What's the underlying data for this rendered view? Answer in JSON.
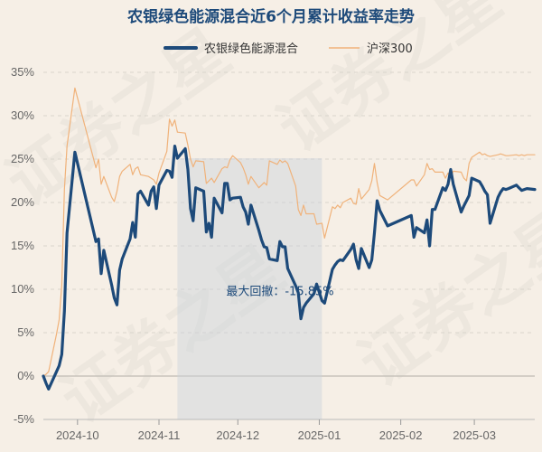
{
  "chart_data": {
    "type": "line",
    "title": "农银绿色能源混合近6个月累计收益率走势",
    "watermark": "证券之星",
    "legend_position": "top-center",
    "grid": true,
    "y_unit": "%",
    "ylim": [
      -5,
      35
    ],
    "y_ticks": [
      -5,
      0,
      5,
      10,
      15,
      20,
      25,
      30,
      35
    ],
    "y_tick_labels": [
      "-5%",
      "0%",
      "5%",
      "10%",
      "15%",
      "20%",
      "25%",
      "30%",
      "35%"
    ],
    "x_range": [
      "2024-09-18",
      "2025-03-24"
    ],
    "x_ticks": [
      "2024-10-01",
      "2024-11-01",
      "2024-12-01",
      "2025-01-01",
      "2025-02-01",
      "2025-03-01"
    ],
    "x_tick_labels": [
      "2024-10",
      "2024-11",
      "2024-12",
      "2025-01",
      "2025-02",
      "2025-03"
    ],
    "series": [
      {
        "name": "农银绿色能源混合",
        "color": "#1d4a7a",
        "x": [
          "2024-09-18",
          "2024-09-19",
          "2024-09-20",
          "2024-09-23",
          "2024-09-24",
          "2024-09-25",
          "2024-09-26",
          "2024-09-27",
          "2024-09-30",
          "2024-10-08",
          "2024-10-09",
          "2024-10-10",
          "2024-10-11",
          "2024-10-14",
          "2024-10-15",
          "2024-10-16",
          "2024-10-17",
          "2024-10-18",
          "2024-10-21",
          "2024-10-22",
          "2024-10-23",
          "2024-10-24",
          "2024-10-25",
          "2024-10-28",
          "2024-10-29",
          "2024-10-30",
          "2024-10-31",
          "2024-11-01",
          "2024-11-04",
          "2024-11-05",
          "2024-11-06",
          "2024-11-07",
          "2024-11-08",
          "2024-11-11",
          "2024-11-12",
          "2024-11-13",
          "2024-11-14",
          "2024-11-15",
          "2024-11-18",
          "2024-11-19",
          "2024-11-20",
          "2024-11-21",
          "2024-11-22",
          "2024-11-25",
          "2024-11-26",
          "2024-11-27",
          "2024-11-28",
          "2024-11-29",
          "2024-12-02",
          "2024-12-03",
          "2024-12-04",
          "2024-12-05",
          "2024-12-06",
          "2024-12-09",
          "2024-12-10",
          "2024-12-11",
          "2024-12-12",
          "2024-12-13",
          "2024-12-16",
          "2024-12-17",
          "2024-12-18",
          "2024-12-19",
          "2024-12-20",
          "2024-12-23",
          "2024-12-24",
          "2024-12-25",
          "2024-12-26",
          "2024-12-27",
          "2024-12-30",
          "2024-12-31",
          "2025-01-02",
          "2025-01-03",
          "2025-01-06",
          "2025-01-07",
          "2025-01-08",
          "2025-01-09",
          "2025-01-10",
          "2025-01-13",
          "2025-01-14",
          "2025-01-15",
          "2025-01-16",
          "2025-01-17",
          "2025-01-20",
          "2025-01-21",
          "2025-01-22",
          "2025-01-23",
          "2025-01-24",
          "2025-01-27",
          "2025-02-05",
          "2025-02-06",
          "2025-02-07",
          "2025-02-10",
          "2025-02-11",
          "2025-02-12",
          "2025-02-13",
          "2025-02-14",
          "2025-02-17",
          "2025-02-18",
          "2025-02-19",
          "2025-02-20",
          "2025-02-21",
          "2025-02-24",
          "2025-02-25",
          "2025-02-26",
          "2025-02-27",
          "2025-02-28",
          "2025-03-03",
          "2025-03-04",
          "2025-03-05",
          "2025-03-06",
          "2025-03-07",
          "2025-03-10",
          "2025-03-11",
          "2025-03-12",
          "2025-03-13",
          "2025-03-14",
          "2025-03-17",
          "2025-03-18",
          "2025-03-19",
          "2025-03-20",
          "2025-03-21",
          "2025-03-24"
        ],
        "values": [
          0.0,
          -0.8,
          -1.5,
          0.5,
          1.2,
          2.5,
          7.5,
          16.5,
          25.8,
          15.5,
          15.8,
          11.8,
          14.5,
          10.5,
          9.0,
          8.2,
          12.2,
          13.5,
          15.8,
          17.7,
          16.0,
          21.0,
          21.3,
          19.7,
          21.3,
          21.8,
          19.3,
          22.0,
          23.7,
          23.6,
          22.9,
          26.5,
          25.1,
          26.2,
          23.8,
          19.3,
          17.9,
          21.7,
          21.3,
          16.6,
          17.6,
          16.0,
          20.5,
          18.8,
          22.2,
          22.2,
          20.3,
          20.5,
          20.6,
          19.5,
          18.9,
          17.5,
          19.7,
          16.8,
          15.7,
          14.9,
          14.8,
          13.5,
          13.3,
          15.5,
          14.9,
          14.9,
          12.4,
          10.4,
          9.6,
          6.6,
          7.9,
          8.4,
          9.5,
          10.6,
          8.7,
          8.4,
          12.3,
          12.8,
          13.2,
          13.4,
          13.3,
          14.6,
          15.2,
          13.4,
          12.4,
          14.7,
          12.5,
          13.4,
          16.5,
          20.2,
          19.1,
          17.3,
          18.5,
          16.0,
          17.1,
          16.5,
          18.0,
          15.0,
          19.2,
          19.2,
          21.7,
          21.4,
          22.1,
          23.8,
          22.1,
          18.9,
          19.6,
          20.2,
          20.8,
          22.8,
          22.4,
          21.9,
          21.3,
          20.9,
          17.6,
          20.6,
          21.2,
          21.6,
          21.5,
          21.6,
          22.0,
          21.7,
          21.4,
          21.5,
          21.6,
          21.5
        ]
      },
      {
        "name": "沪深300",
        "color": "#f0b27a",
        "x": [
          "2024-09-18",
          "2024-09-19",
          "2024-09-20",
          "2024-09-23",
          "2024-09-24",
          "2024-09-25",
          "2024-09-26",
          "2024-09-27",
          "2024-09-30",
          "2024-10-08",
          "2024-10-09",
          "2024-10-10",
          "2024-10-11",
          "2024-10-14",
          "2024-10-15",
          "2024-10-16",
          "2024-10-17",
          "2024-10-18",
          "2024-10-21",
          "2024-10-22",
          "2024-10-23",
          "2024-10-24",
          "2024-10-25",
          "2024-10-28",
          "2024-10-29",
          "2024-10-30",
          "2024-10-31",
          "2024-11-01",
          "2024-11-04",
          "2024-11-05",
          "2024-11-06",
          "2024-11-07",
          "2024-11-08",
          "2024-11-11",
          "2024-11-12",
          "2024-11-13",
          "2024-11-14",
          "2024-11-15",
          "2024-11-18",
          "2024-11-19",
          "2024-11-20",
          "2024-11-21",
          "2024-11-22",
          "2024-11-25",
          "2024-11-26",
          "2024-11-27",
          "2024-11-28",
          "2024-11-29",
          "2024-12-02",
          "2024-12-03",
          "2024-12-04",
          "2024-12-05",
          "2024-12-06",
          "2024-12-09",
          "2024-12-10",
          "2024-12-11",
          "2024-12-12",
          "2024-12-13",
          "2024-12-16",
          "2024-12-17",
          "2024-12-18",
          "2024-12-19",
          "2024-12-20",
          "2024-12-23",
          "2024-12-24",
          "2024-12-25",
          "2024-12-26",
          "2024-12-27",
          "2024-12-30",
          "2024-12-31",
          "2025-01-02",
          "2025-01-03",
          "2025-01-06",
          "2025-01-07",
          "2025-01-08",
          "2025-01-09",
          "2025-01-10",
          "2025-01-13",
          "2025-01-14",
          "2025-01-15",
          "2025-01-16",
          "2025-01-17",
          "2025-01-20",
          "2025-01-21",
          "2025-01-22",
          "2025-01-23",
          "2025-01-24",
          "2025-01-27",
          "2025-02-05",
          "2025-02-06",
          "2025-02-07",
          "2025-02-10",
          "2025-02-11",
          "2025-02-12",
          "2025-02-13",
          "2025-02-14",
          "2025-02-17",
          "2025-02-18",
          "2025-02-19",
          "2025-02-20",
          "2025-02-21",
          "2025-02-24",
          "2025-02-25",
          "2025-02-26",
          "2025-02-27",
          "2025-02-28",
          "2025-03-03",
          "2025-03-04",
          "2025-03-05",
          "2025-03-06",
          "2025-03-07",
          "2025-03-10",
          "2025-03-11",
          "2025-03-12",
          "2025-03-13",
          "2025-03-14",
          "2025-03-17",
          "2025-03-18",
          "2025-03-19",
          "2025-03-20",
          "2025-03-21",
          "2025-03-24"
        ],
        "values": [
          0.0,
          0.2,
          0.5,
          4.8,
          6.5,
          10.5,
          21.5,
          26.5,
          33.2,
          24.0,
          25.0,
          22.1,
          23.0,
          20.6,
          20.1,
          21.3,
          23.0,
          23.6,
          24.4,
          23.2,
          23.9,
          24.1,
          23.2,
          23.0,
          22.8,
          22.6,
          22.1,
          23.4,
          25.9,
          29.6,
          28.8,
          29.5,
          28.1,
          28.0,
          26.6,
          25.0,
          24.1,
          24.8,
          24.7,
          22.2,
          22.5,
          22.8,
          22.3,
          23.9,
          24.1,
          24.0,
          24.9,
          25.4,
          24.6,
          24.0,
          23.2,
          22.1,
          23.0,
          21.7,
          22.0,
          22.3,
          22.0,
          24.8,
          24.4,
          24.9,
          24.6,
          24.8,
          24.5,
          21.9,
          19.2,
          18.5,
          19.7,
          18.7,
          18.7,
          17.5,
          17.6,
          15.9,
          19.5,
          19.3,
          19.7,
          19.4,
          20.0,
          20.5,
          19.9,
          19.8,
          21.6,
          20.4,
          21.5,
          22.5,
          24.5,
          22.3,
          20.8,
          20.3,
          22.6,
          22.6,
          21.9,
          23.2,
          24.5,
          23.8,
          23.9,
          23.5,
          23.5,
          22.8,
          23.4,
          22.9,
          23.6,
          23.5,
          22.8,
          22.5,
          24.5,
          25.2,
          25.8,
          25.5,
          25.6,
          25.4,
          25.3,
          25.5,
          25.6,
          25.5,
          25.4,
          25.4,
          25.5,
          25.4,
          25.5,
          25.4,
          25.5,
          25.5
        ]
      }
    ],
    "annotation": {
      "text": "最大回撤：-15.85%",
      "value": -15.85,
      "start": "2024-11-08",
      "end": "2025-01-02"
    }
  },
  "colors": {
    "background": "#f6efe6",
    "title": "#1d4a7a",
    "fund_line": "#1d4a7a",
    "index_line": "#f0b27a",
    "drawdown_fill": "#c9d2db",
    "grid": "#d9d4cc",
    "zero_line": "#c8c3bb",
    "tick_text": "#666666",
    "annotation_text": "#1d4a7a"
  }
}
